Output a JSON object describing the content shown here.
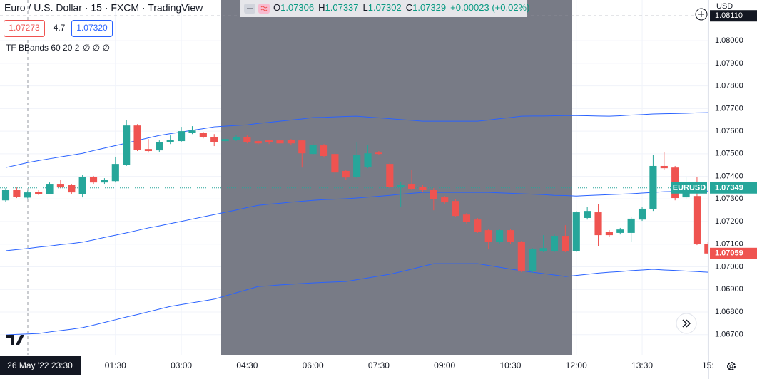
{
  "chart_data": {
    "type": "candlestick",
    "title": "Euro / U.S. Dollar · 15 · FXCM · TradingView",
    "ohlc_labels": [
      "O",
      "H",
      "L",
      "C"
    ],
    "change": "+0.00023 (+0.02%)",
    "sell_price": "1.07273",
    "spread": "4.7",
    "buy_price": "1.07320",
    "indicator": "TF BBands 60 20 2",
    "indicator_values": "∅ ∅ ∅",
    "currency": "USD",
    "crosshair": {
      "x_label": "26 May '22  23:30",
      "y": {
        "value": 1.0811,
        "label": "1.08110"
      }
    },
    "categories": [
      null,
      null,
      null,
      null,
      null,
      null,
      null,
      null,
      null,
      null,
      "01:30",
      null,
      null,
      null,
      null,
      null,
      "03:00",
      null,
      null,
      null,
      null,
      null,
      "04:30",
      null,
      null,
      null,
      null,
      null,
      "06:00",
      null,
      null,
      null,
      null,
      null,
      "07:30",
      null,
      null,
      null,
      null,
      null,
      "09:00",
      null,
      null,
      null,
      null,
      null,
      "10:30",
      null,
      null,
      null,
      null,
      null,
      "12:00",
      null,
      null,
      null,
      null,
      null,
      "13:30",
      null,
      null,
      null,
      null,
      null,
      "15:"
    ],
    "candles": {
      "up_color": "#26a69a",
      "down_color": "#ef5350",
      "open": [
        1.07294,
        1.07342,
        1.07306,
        1.07332,
        1.07323,
        1.07367,
        1.07361,
        1.07323,
        1.07398,
        1.07373,
        1.07379,
        1.07452,
        1.07625,
        1.07521,
        1.07515,
        1.0755,
        1.07556,
        1.07594,
        1.07594,
        1.07572,
        1.07556,
        1.07562,
        1.07575,
        1.07556,
        1.07559,
        1.07559,
        1.07562,
        1.07559,
        1.07499,
        1.07537,
        1.07499,
        1.07424,
        1.07398,
        1.07442,
        1.07505,
        1.07455,
        1.07354,
        1.07367,
        1.07354,
        1.07342,
        1.07307,
        1.07291,
        1.07231,
        1.07209,
        1.07162,
        1.07109,
        1.07162,
        1.07109,
        1.06983,
        1.07071,
        1.07071,
        1.07137,
        1.07071,
        1.07216,
        1.07241,
        1.07156,
        1.0715,
        1.0715,
        1.07209,
        1.07254,
        1.07446,
        1.07439,
        1.07307,
        1.07313,
        1.07102
      ],
      "high": [
        1.07348,
        1.07351,
        1.07337,
        1.07339,
        1.07373,
        1.07386,
        1.07367,
        1.07405,
        1.07402,
        1.07392,
        1.07487,
        1.0765,
        1.07631,
        1.07565,
        1.07559,
        1.07581,
        1.07619,
        1.07622,
        1.07597,
        1.07587,
        1.07572,
        1.07581,
        1.07581,
        1.07562,
        1.07562,
        1.07565,
        1.07565,
        1.07562,
        1.0755,
        1.07543,
        1.07505,
        1.0743,
        1.0755,
        1.0754,
        1.07512,
        1.07461,
        1.07376,
        1.0743,
        1.07361,
        1.07348,
        1.07313,
        1.07298,
        1.07238,
        1.07216,
        1.07168,
        1.07168,
        1.07168,
        1.07115,
        1.07083,
        1.0714,
        1.07143,
        1.07184,
        1.07247,
        1.07266,
        1.07276,
        1.07162,
        1.07172,
        1.07219,
        1.07263,
        1.07496,
        1.07509,
        1.07446,
        1.07398,
        1.07398,
        1.07109
      ],
      "low": [
        1.07288,
        1.07304,
        1.07302,
        1.07317,
        1.0732,
        1.07348,
        1.07323,
        1.07307,
        1.07367,
        1.07367,
        1.07373,
        1.07446,
        1.07512,
        1.07505,
        1.07509,
        1.07543,
        1.07553,
        1.07587,
        1.07568,
        1.07534,
        1.0755,
        1.07556,
        1.07546,
        1.0754,
        1.07543,
        1.0754,
        1.07537,
        1.07439,
        1.07493,
        1.07483,
        1.07392,
        1.07386,
        1.07392,
        1.07436,
        1.07493,
        1.07348,
        1.07266,
        1.07339,
        1.07329,
        1.0725,
        1.07279,
        1.07219,
        1.0719,
        1.0715,
        1.07077,
        1.07102,
        1.07102,
        1.06976,
        1.06973,
        1.07065,
        1.07065,
        1.07065,
        1.07065,
        1.07209,
        1.07093,
        1.07134,
        1.07143,
        1.07109,
        1.07203,
        1.07247,
        1.0743,
        1.07294,
        1.07301,
        1.07096,
        1.07055
      ],
      "close": [
        1.07339,
        1.0731,
        1.07329,
        1.07323,
        1.07367,
        1.07351,
        1.07329,
        1.07398,
        1.07373,
        1.07383,
        1.07455,
        1.07625,
        1.07518,
        1.07512,
        1.07553,
        1.07562,
        1.076,
        1.07603,
        1.07575,
        1.0755,
        1.07565,
        1.07575,
        1.07553,
        1.07546,
        1.0755,
        1.07546,
        1.07546,
        1.07502,
        1.0754,
        1.0749,
        1.07417,
        1.07395,
        1.07496,
        1.07502,
        1.07499,
        1.07354,
        1.07364,
        1.07345,
        1.07339,
        1.07298,
        1.07285,
        1.07225,
        1.07197,
        1.07156,
        1.07109,
        1.07162,
        1.07109,
        1.06983,
        1.07077,
        1.07083,
        1.07137,
        1.07071,
        1.07241,
        1.07247,
        1.0714,
        1.0714,
        1.07165,
        1.07213,
        1.07257,
        1.07446,
        1.07436,
        1.07304,
        1.07335,
        1.07102,
        1.07059
      ]
    },
    "bands": [
      {
        "color": "#2962ff",
        "values": [
          1.07439,
          1.0745,
          1.07461,
          1.0747,
          1.07478,
          1.07486,
          1.07494,
          1.07502,
          1.07514,
          1.07525,
          1.07536,
          1.07547,
          1.07559,
          1.0757,
          1.07581,
          1.07589,
          1.07596,
          1.07604,
          1.07611,
          1.07619,
          1.07622,
          1.07625,
          1.07628,
          1.07634,
          1.07639,
          1.07644,
          1.07649,
          1.07654,
          1.0766,
          1.07661,
          1.07663,
          1.07665,
          1.07666,
          1.07662,
          1.07659,
          1.07655,
          1.07651,
          1.07648,
          1.07644,
          1.07644,
          1.07644,
          1.07644,
          1.07644,
          1.07644,
          1.07649,
          1.07655,
          1.0766,
          1.07666,
          1.07667,
          1.07667,
          1.07668,
          1.07669,
          1.07669,
          1.07668,
          1.07667,
          1.07666,
          1.07668,
          1.07671,
          1.07673,
          1.07676,
          1.07677,
          1.07678,
          1.07679,
          1.07681,
          1.07682
        ]
      },
      {
        "color": "#2962ff",
        "values": [
          1.07071,
          1.07076,
          1.07081,
          1.07087,
          1.07092,
          1.07098,
          1.07103,
          1.07109,
          1.07119,
          1.0713,
          1.0714,
          1.0715,
          1.07161,
          1.07172,
          1.07181,
          1.07191,
          1.07201,
          1.07211,
          1.07221,
          1.07231,
          1.07241,
          1.07251,
          1.07262,
          1.07272,
          1.07277,
          1.07281,
          1.07286,
          1.0729,
          1.07294,
          1.07297,
          1.07299,
          1.07301,
          1.07304,
          1.07308,
          1.07312,
          1.07316,
          1.07321,
          1.07325,
          1.07329,
          1.07329,
          1.07329,
          1.07329,
          1.07329,
          1.07329,
          1.07329,
          1.07327,
          1.07325,
          1.07323,
          1.07321,
          1.07319,
          1.07316,
          1.07315,
          1.07313,
          1.07315,
          1.07317,
          1.07319,
          1.07321,
          1.07323,
          1.07326,
          1.07329,
          1.07332,
          1.07333,
          1.07334,
          1.07334,
          1.07335
        ]
      },
      {
        "color": "#2962ff",
        "values": [
          1.06699,
          1.06701,
          1.06703,
          1.06705,
          1.06712,
          1.06718,
          1.06724,
          1.06731,
          1.06742,
          1.06754,
          1.06766,
          1.06778,
          1.06789,
          1.06801,
          1.06813,
          1.06825,
          1.06833,
          1.06841,
          1.06849,
          1.06857,
          1.06871,
          1.06885,
          1.06899,
          1.06913,
          1.06916,
          1.0692,
          1.06923,
          1.06926,
          1.06929,
          1.06931,
          1.06933,
          1.06935,
          1.06943,
          1.06951,
          1.06959,
          1.06967,
          1.06978,
          1.0699,
          1.07002,
          1.07014,
          1.07014,
          1.07014,
          1.07014,
          1.07014,
          1.07006,
          1.06998,
          1.0699,
          1.06983,
          1.06976,
          1.0697,
          1.06964,
          1.06957,
          1.06962,
          1.06967,
          1.06972,
          1.06976,
          1.06979,
          1.06983,
          1.06986,
          1.06989,
          1.06986,
          1.06984,
          1.06981,
          1.06979,
          1.06976
        ]
      }
    ],
    "price_line": {
      "name": "EURUSD",
      "value": 1.07349,
      "color": "#26a69a"
    },
    "ylim": [
      1.06611,
      1.0818
    ],
    "yticks": [
      {
        "value": 1.08,
        "label": "1.08000"
      },
      {
        "value": 1.079,
        "label": "1.07900"
      },
      {
        "value": 1.078,
        "label": "1.07800"
      },
      {
        "value": 1.077,
        "label": "1.07700"
      },
      {
        "value": 1.076,
        "label": "1.07600"
      },
      {
        "value": 1.075,
        "label": "1.07500"
      },
      {
        "value": 1.074,
        "label": "1.07400"
      },
      {
        "value": 1.073,
        "label": "1.07300"
      },
      {
        "value": 1.072,
        "label": "1.07200"
      },
      {
        "value": 1.071,
        "label": "1.07100"
      },
      {
        "value": 1.07,
        "label": "1.07000"
      },
      {
        "value": 1.069,
        "label": "1.06900"
      },
      {
        "value": 1.068,
        "label": "1.06800"
      },
      {
        "value": 1.067,
        "label": "1.06700"
      }
    ],
    "grid": true
  }
}
